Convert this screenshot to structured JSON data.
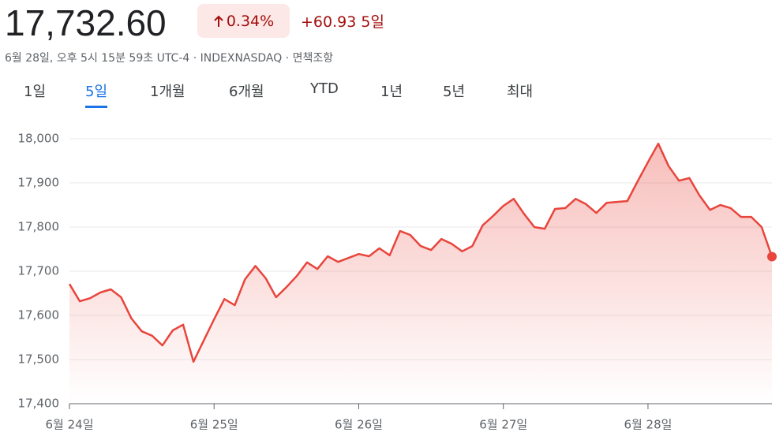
{
  "header": {
    "price": "17,732.60",
    "change_percent": "0.34%",
    "change": "+60.93",
    "period": "5일",
    "subtitle": "6월 28일, 오후 5시 15분 59초 UTC-4 · INDEXNASDAQ · 면책조항"
  },
  "tabs": {
    "items": [
      "1일",
      "5일",
      "1개월",
      "6개월",
      "YTD",
      "1년",
      "5년",
      "최대"
    ],
    "selected": 1
  },
  "chart_data": {
    "type": "line",
    "categories": [
      "6월 24일",
      null,
      null,
      null,
      null,
      null,
      null,
      null,
      null,
      null,
      null,
      null,
      null,
      null,
      "6월 25일",
      null,
      null,
      null,
      null,
      null,
      null,
      null,
      null,
      null,
      null,
      null,
      null,
      null,
      "6월 26일",
      null,
      null,
      null,
      null,
      null,
      null,
      null,
      null,
      null,
      null,
      null,
      null,
      null,
      "6월 27일",
      null,
      null,
      null,
      null,
      null,
      null,
      null,
      null,
      null,
      null,
      null,
      null,
      null,
      "6월 28일",
      null,
      null,
      null,
      null,
      null,
      null,
      null,
      null,
      null,
      null,
      null,
      null
    ],
    "values": [
      17671,
      17632,
      17639,
      17652,
      17659,
      17641,
      17593,
      17564,
      17554,
      17532,
      17566,
      17579,
      17495,
      17543,
      17591,
      17637,
      17623,
      17682,
      17712,
      17684,
      17641,
      17664,
      17689,
      17720,
      17705,
      17734,
      17721,
      17730,
      17739,
      17734,
      17752,
      17736,
      17791,
      17782,
      17757,
      17748,
      17773,
      17762,
      17745,
      17757,
      17804,
      17825,
      17848,
      17864,
      17830,
      17800,
      17796,
      17841,
      17843,
      17864,
      17852,
      17832,
      17855,
      17857,
      17859,
      17904,
      17947,
      17989,
      17938,
      17905,
      17911,
      17871,
      17839,
      17850,
      17843,
      17823,
      17823,
      17800,
      17733
    ],
    "color": "#e8453c",
    "ylim": [
      17400,
      18000
    ],
    "yticks": [
      {
        "value": 17400,
        "label": "17,400"
      },
      {
        "value": 17500,
        "label": "17,500"
      },
      {
        "value": 17600,
        "label": "17,600"
      },
      {
        "value": 17700,
        "label": "17,700"
      },
      {
        "value": 17800,
        "label": "17,800"
      },
      {
        "value": 17900,
        "label": "17,900"
      },
      {
        "value": 18000,
        "label": "18,000"
      }
    ],
    "grid": true
  }
}
